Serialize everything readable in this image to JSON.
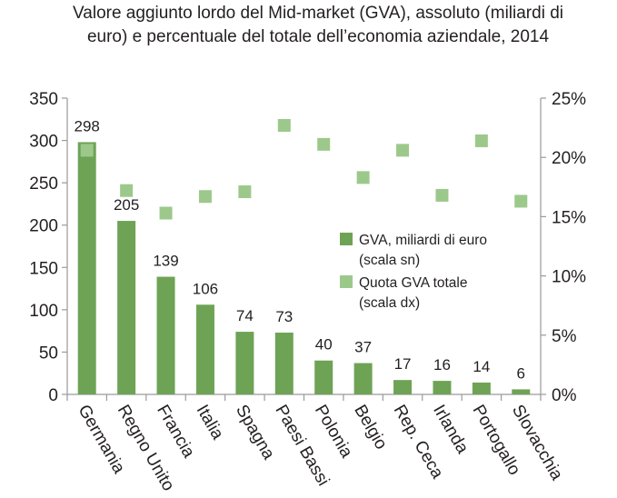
{
  "chart_data": {
    "type": "bar",
    "title_lines": [
      "Valore aggiunto lordo del Mid-market (GVA), assoluto (miliardi di",
      "euro) e percentuale del totale dell’economia aziendale, 2014"
    ],
    "categories": [
      "Germania",
      "Regno Unito",
      "Francia",
      "Italia",
      "Spagna",
      "Paesi Bassi",
      "Polonia",
      "Belgio",
      "Rep. Ceca",
      "Irlanda",
      "Portogallo",
      "Slovacchia"
    ],
    "series": [
      {
        "name": "GVA, miliardi di euro",
        "name_note": "(scala sn)",
        "type": "bar",
        "axis": "left",
        "values": [
          298,
          205,
          139,
          106,
          74,
          73,
          40,
          37,
          17,
          16,
          14,
          6
        ],
        "labels": [
          "298",
          "205",
          "139",
          "106",
          "74",
          "73",
          "40",
          "37",
          "17",
          "16",
          "14",
          "6"
        ]
      },
      {
        "name": "Quota GVA totale",
        "name_note": "(scala dx)",
        "type": "scatter",
        "axis": "right",
        "values": [
          20.6,
          17.2,
          15.3,
          16.7,
          17.1,
          22.7,
          21.1,
          18.3,
          20.6,
          16.8,
          21.4,
          16.3
        ]
      }
    ],
    "y_left": {
      "min": 0,
      "max": 350,
      "ticks": [
        "0",
        "50",
        "100",
        "150",
        "200",
        "250",
        "300",
        "350"
      ]
    },
    "y_right": {
      "min": 0,
      "max": 25,
      "ticks": [
        "0%",
        "5%",
        "10%",
        "15%",
        "20%",
        "25%"
      ]
    },
    "legend_position": "center-right",
    "colors": {
      "bar": "#6ea356",
      "marker": "#9cc98b",
      "axis": "#9a9a9a"
    }
  }
}
